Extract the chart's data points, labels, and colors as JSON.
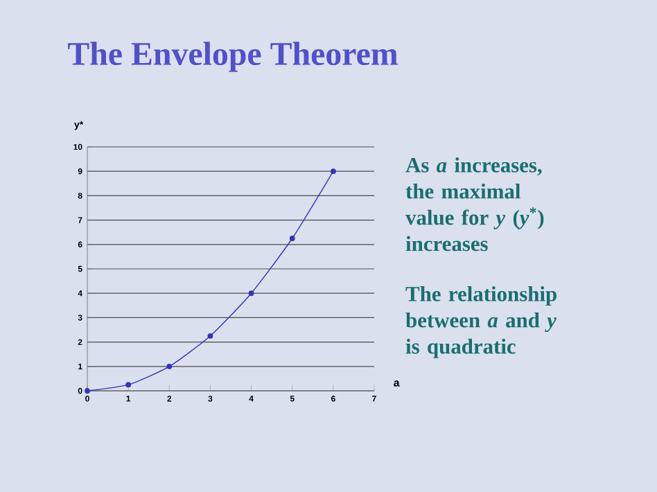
{
  "chart_data": {
    "type": "line",
    "title": "The Envelope Theorem",
    "xlabel": "a",
    "ylabel": "y*",
    "x": [
      0,
      1,
      2,
      3,
      4,
      5,
      6
    ],
    "series": [
      {
        "color": "#3333bb",
        "values": [
          0,
          0.25,
          1,
          2.25,
          4,
          6.25,
          9
        ]
      }
    ],
    "xlim": [
      0,
      7
    ],
    "xticks": [
      0,
      1,
      2,
      3,
      4,
      5,
      6,
      7
    ],
    "ylim": [
      0,
      10
    ],
    "yticks": [
      0,
      1,
      2,
      3,
      4,
      5,
      6,
      7,
      8,
      9,
      10
    ],
    "grid": "y",
    "marker": "circle",
    "line_style": "solid",
    "annotations": [
      "As *a* increases, the maximal value for *y* (*y*$^{*}$) increases",
      "The relationship between *a* and *y* is quadratic"
    ]
  }
}
